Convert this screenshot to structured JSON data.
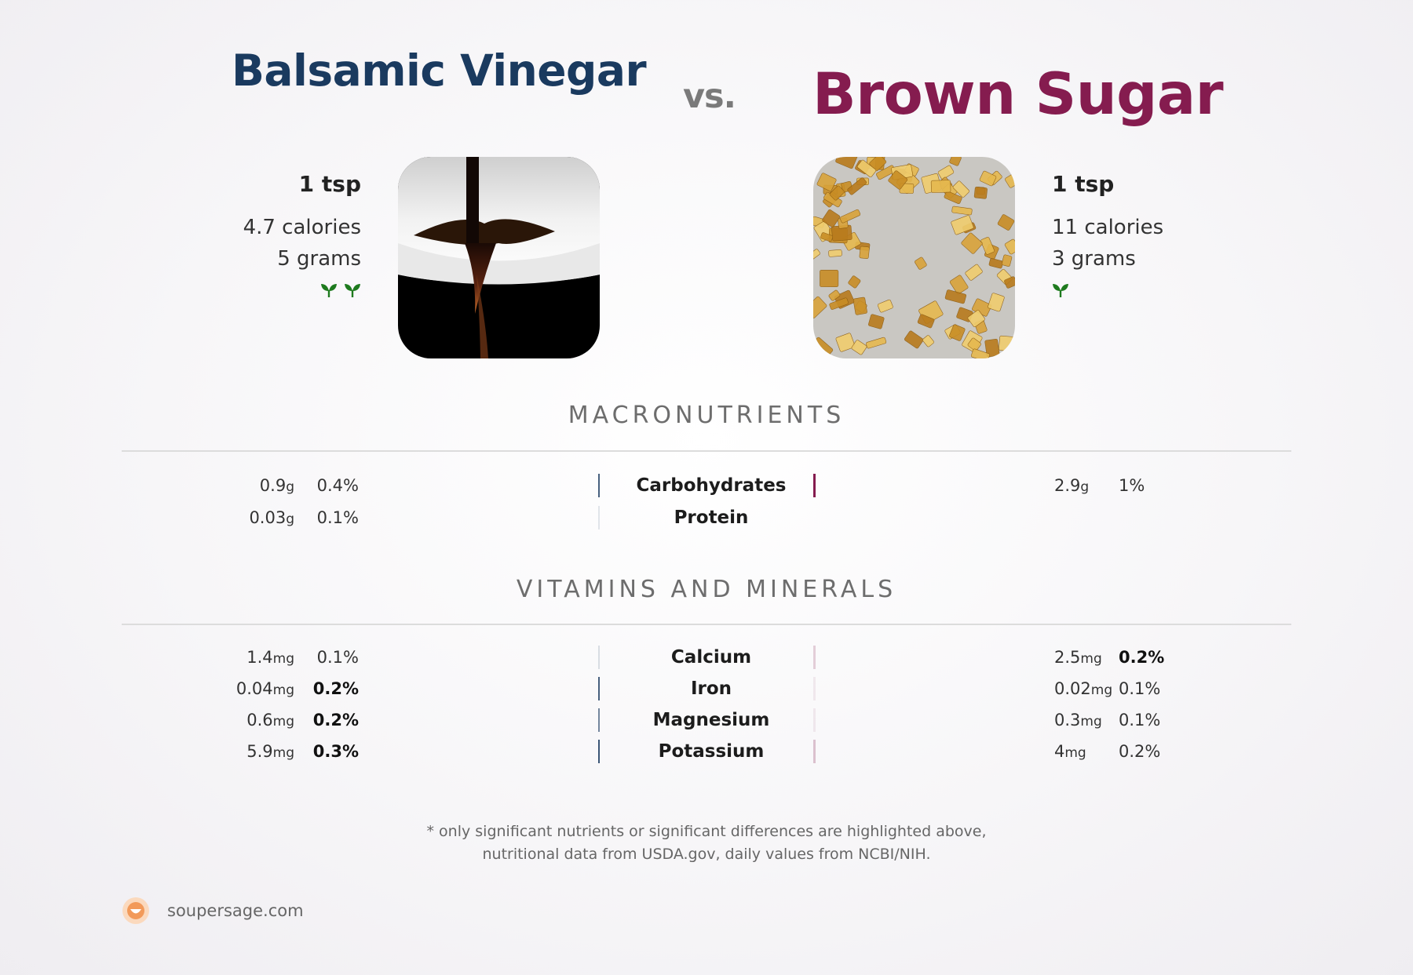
{
  "header": {
    "left_title": "Balsamic Vinegar",
    "vs": "vs.",
    "right_title": "Brown Sugar",
    "left_color": "#1a3a5f",
    "right_color": "#851c4f"
  },
  "left_food": {
    "serving": "1 tsp",
    "calories": "4.7 calories",
    "grams": "5 grams",
    "sprout_count": 2,
    "image_icon": "balsamic-vinegar-photo"
  },
  "right_food": {
    "serving": "1 tsp",
    "calories": "11 calories",
    "grams": "3 grams",
    "sprout_count": 1,
    "image_icon": "brown-sugar-photo"
  },
  "sections": {
    "macros_title": "MACRONUTRIENTS",
    "vitamins_title": "VITAMINS AND MINERALS"
  },
  "macros": [
    {
      "name": "Carbohydrates",
      "left_value": "0.9",
      "left_unit": "g",
      "left_pct": "0.4%",
      "left_bold": false,
      "right_value": "2.9",
      "right_unit": "g",
      "right_pct": "1%",
      "right_bold": false,
      "left_bar_opacity": 0.8,
      "right_bar_opacity": 1.0
    },
    {
      "name": "Protein",
      "left_value": "0.03",
      "left_unit": "g",
      "left_pct": "0.1%",
      "left_bold": false,
      "right_value": "",
      "right_unit": "",
      "right_pct": "",
      "right_bold": false,
      "left_bar_opacity": 0.12,
      "right_bar_opacity": 0
    }
  ],
  "vitamins": [
    {
      "name": "Calcium",
      "left_value": "1.4",
      "left_unit": "mg",
      "left_pct": "0.1%",
      "left_bold": false,
      "right_value": "2.5",
      "right_unit": "mg",
      "right_pct": "0.2%",
      "right_bold": true,
      "left_bar_opacity": 0.15,
      "right_bar_opacity": 0.2
    },
    {
      "name": "Iron",
      "left_value": "0.04",
      "left_unit": "mg",
      "left_pct": "0.2%",
      "left_bold": true,
      "right_value": "0.02",
      "right_unit": "mg",
      "right_pct": "0.1%",
      "right_bold": false,
      "left_bar_opacity": 0.8,
      "right_bar_opacity": 0.08
    },
    {
      "name": "Magnesium",
      "left_value": "0.6",
      "left_unit": "mg",
      "left_pct": "0.2%",
      "left_bold": true,
      "right_value": "0.3",
      "right_unit": "mg",
      "right_pct": "0.1%",
      "right_bold": false,
      "left_bar_opacity": 0.6,
      "right_bar_opacity": 0.08
    },
    {
      "name": "Potassium",
      "left_value": "5.9",
      "left_unit": "mg",
      "left_pct": "0.3%",
      "left_bold": true,
      "right_value": "4",
      "right_unit": "mg",
      "right_pct": "0.2%",
      "right_bold": false,
      "left_bar_opacity": 0.85,
      "right_bar_opacity": 0.25
    }
  ],
  "footer": {
    "note_line1": "* only significant nutrients or significant differences are highlighted above,",
    "note_line2": "nutritional data from USDA.gov, daily values from NCBI/NIH.",
    "brand": "soupersage.com",
    "brand_color": "#f0a56b"
  },
  "sprout_color": "#1e7a1e"
}
